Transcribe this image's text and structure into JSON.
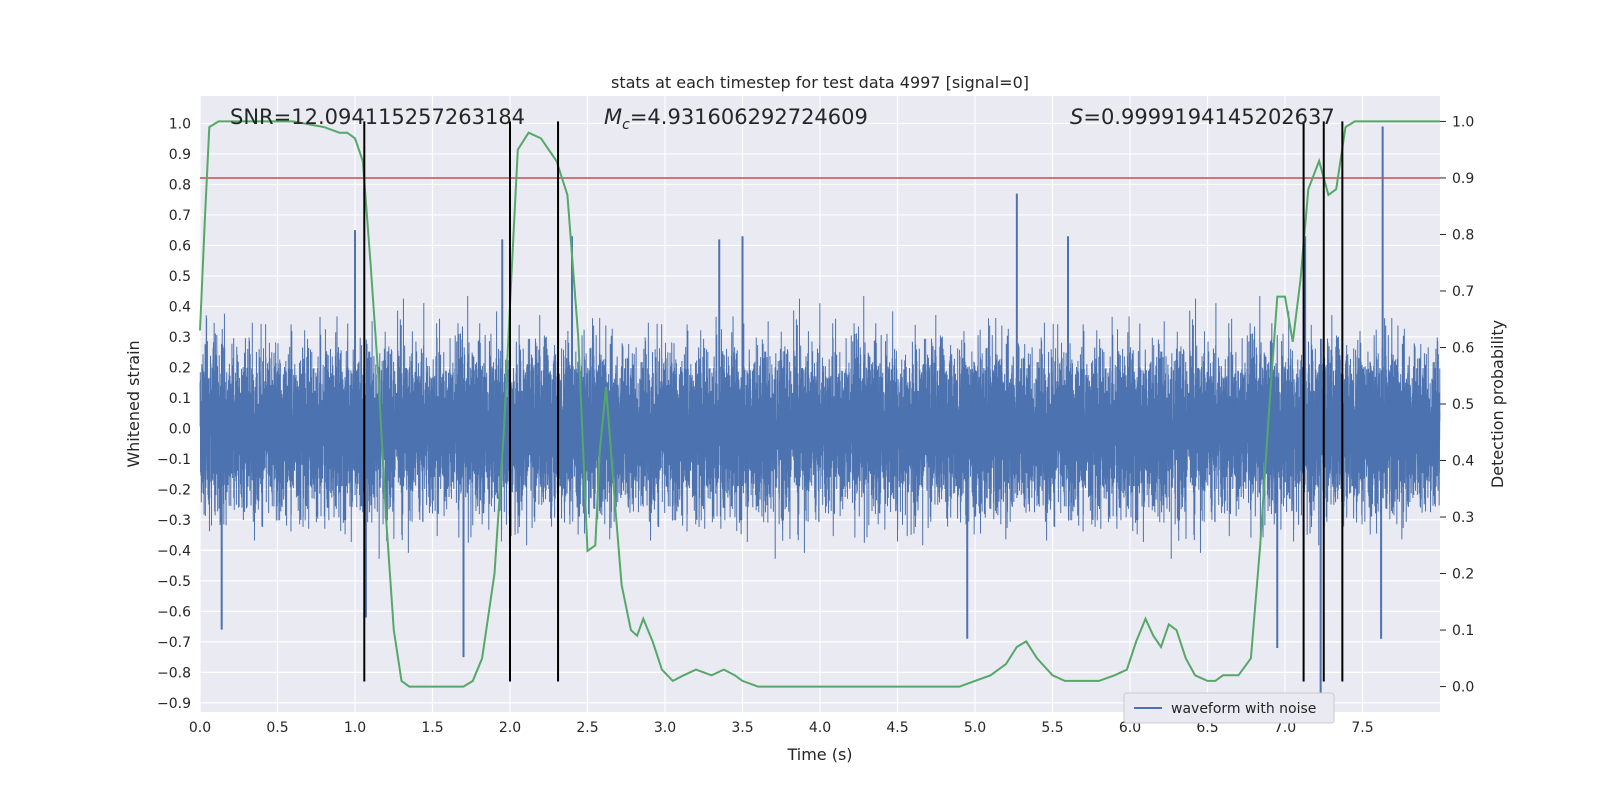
{
  "chart_data": {
    "type": "line",
    "title": "stats at each timestep for test data 4997 [signal=0]",
    "xlabel": "Time (s)",
    "ylabel": "Whitened strain",
    "y2label": "Detection probability",
    "xlim": [
      0,
      8
    ],
    "ylim": [
      -0.93,
      1.09
    ],
    "y2lim": [
      -0.045,
      1.045
    ],
    "xticks": [
      "0.0",
      "0.5",
      "1.0",
      "1.5",
      "2.0",
      "2.5",
      "3.0",
      "3.5",
      "4.0",
      "4.5",
      "5.0",
      "5.5",
      "6.0",
      "6.5",
      "7.0",
      "7.5"
    ],
    "yticks": [
      "1.0",
      "0.9",
      "0.8",
      "0.7",
      "0.6",
      "0.5",
      "0.4",
      "0.3",
      "0.2",
      "0.1",
      "0.0",
      "−0.1",
      "−0.2",
      "−0.3",
      "−0.4",
      "−0.5",
      "−0.6",
      "−0.7",
      "−0.8",
      "−0.9"
    ],
    "y2ticks": [
      "1.0",
      "0.9",
      "0.8",
      "0.7",
      "0.6",
      "0.5",
      "0.4",
      "0.3",
      "0.2",
      "0.1",
      "0.0"
    ],
    "grid": true,
    "legend": {
      "placement": "lower-right"
    },
    "annotations": {
      "snr": "SNR=12.094115257263184",
      "mc_symbol": "M",
      "mc_sub": "c",
      "mc_value": "=4.931606292724609",
      "s_symbol": "S",
      "s_value": "=0.9999194145202637"
    },
    "threshold": {
      "value": 0.9,
      "axis": "right",
      "color": "#c44e52"
    },
    "vertical_markers": [
      1.06,
      2.0,
      2.31,
      7.12,
      7.25,
      7.37
    ],
    "series": [
      {
        "name": "waveform with noise",
        "axis": "left",
        "color": "#4c72b0",
        "sample_rate": 2048,
        "duration": 8,
        "spikes": [
          [
            0.14,
            -0.66
          ],
          [
            1.0,
            0.65
          ],
          [
            1.07,
            -0.62
          ],
          [
            1.7,
            -0.75
          ],
          [
            2.4,
            0.63
          ],
          [
            3.5,
            0.63
          ],
          [
            5.27,
            0.77
          ],
          [
            5.6,
            0.63
          ],
          [
            4.95,
            -0.69
          ],
          [
            6.95,
            -0.72
          ],
          [
            7.13,
            0.63
          ],
          [
            7.23,
            -0.92
          ],
          [
            7.63,
            0.99
          ],
          [
            7.62,
            -0.69
          ],
          [
            3.35,
            0.62
          ],
          [
            1.95,
            0.62
          ]
        ]
      },
      {
        "name": "",
        "axis": "right",
        "color": "#55a868",
        "points": [
          [
            0,
            0.63
          ],
          [
            0.03,
            0.82
          ],
          [
            0.06,
            0.99
          ],
          [
            0.12,
            1.0
          ],
          [
            0.3,
            1.0
          ],
          [
            0.6,
            1.0
          ],
          [
            0.8,
            0.99
          ],
          [
            0.9,
            0.98
          ],
          [
            0.95,
            0.98
          ],
          [
            1.0,
            0.97
          ],
          [
            1.05,
            0.93
          ],
          [
            1.1,
            0.75
          ],
          [
            1.15,
            0.55
          ],
          [
            1.2,
            0.3
          ],
          [
            1.25,
            0.1
          ],
          [
            1.3,
            0.01
          ],
          [
            1.35,
            0.0
          ],
          [
            1.45,
            0.0
          ],
          [
            1.6,
            0.0
          ],
          [
            1.7,
            0.0
          ],
          [
            1.76,
            0.01
          ],
          [
            1.82,
            0.05
          ],
          [
            1.9,
            0.2
          ],
          [
            1.96,
            0.45
          ],
          [
            2.01,
            0.73
          ],
          [
            2.05,
            0.95
          ],
          [
            2.12,
            0.98
          ],
          [
            2.2,
            0.97
          ],
          [
            2.3,
            0.93
          ],
          [
            2.37,
            0.87
          ],
          [
            2.44,
            0.62
          ],
          [
            2.5,
            0.24
          ],
          [
            2.55,
            0.25
          ],
          [
            2.58,
            0.42
          ],
          [
            2.62,
            0.53
          ],
          [
            2.67,
            0.35
          ],
          [
            2.72,
            0.18
          ],
          [
            2.78,
            0.1
          ],
          [
            2.82,
            0.09
          ],
          [
            2.86,
            0.12
          ],
          [
            2.92,
            0.08
          ],
          [
            2.98,
            0.03
          ],
          [
            3.05,
            0.01
          ],
          [
            3.12,
            0.02
          ],
          [
            3.2,
            0.03
          ],
          [
            3.3,
            0.02
          ],
          [
            3.38,
            0.03
          ],
          [
            3.45,
            0.02
          ],
          [
            3.5,
            0.01
          ],
          [
            3.6,
            0.0
          ],
          [
            3.8,
            0.0
          ],
          [
            4.2,
            0.0
          ],
          [
            4.6,
            0.0
          ],
          [
            4.9,
            0.0
          ],
          [
            5.0,
            0.01
          ],
          [
            5.1,
            0.02
          ],
          [
            5.2,
            0.04
          ],
          [
            5.27,
            0.07
          ],
          [
            5.33,
            0.08
          ],
          [
            5.4,
            0.05
          ],
          [
            5.5,
            0.02
          ],
          [
            5.58,
            0.01
          ],
          [
            5.7,
            0.01
          ],
          [
            5.8,
            0.01
          ],
          [
            5.9,
            0.02
          ],
          [
            5.98,
            0.03
          ],
          [
            6.04,
            0.08
          ],
          [
            6.1,
            0.12
          ],
          [
            6.15,
            0.09
          ],
          [
            6.2,
            0.07
          ],
          [
            6.25,
            0.11
          ],
          [
            6.3,
            0.1
          ],
          [
            6.36,
            0.05
          ],
          [
            6.42,
            0.02
          ],
          [
            6.5,
            0.01
          ],
          [
            6.55,
            0.01
          ],
          [
            6.6,
            0.02
          ],
          [
            6.7,
            0.02
          ],
          [
            6.78,
            0.05
          ],
          [
            6.84,
            0.25
          ],
          [
            6.9,
            0.5
          ],
          [
            6.95,
            0.69
          ],
          [
            7.0,
            0.69
          ],
          [
            7.05,
            0.61
          ],
          [
            7.1,
            0.72
          ],
          [
            7.15,
            0.88
          ],
          [
            7.22,
            0.93
          ],
          [
            7.28,
            0.87
          ],
          [
            7.33,
            0.88
          ],
          [
            7.39,
            0.99
          ],
          [
            7.45,
            1.0
          ],
          [
            7.6,
            1.0
          ],
          [
            7.8,
            1.0
          ],
          [
            8.0,
            1.0
          ]
        ]
      }
    ]
  }
}
